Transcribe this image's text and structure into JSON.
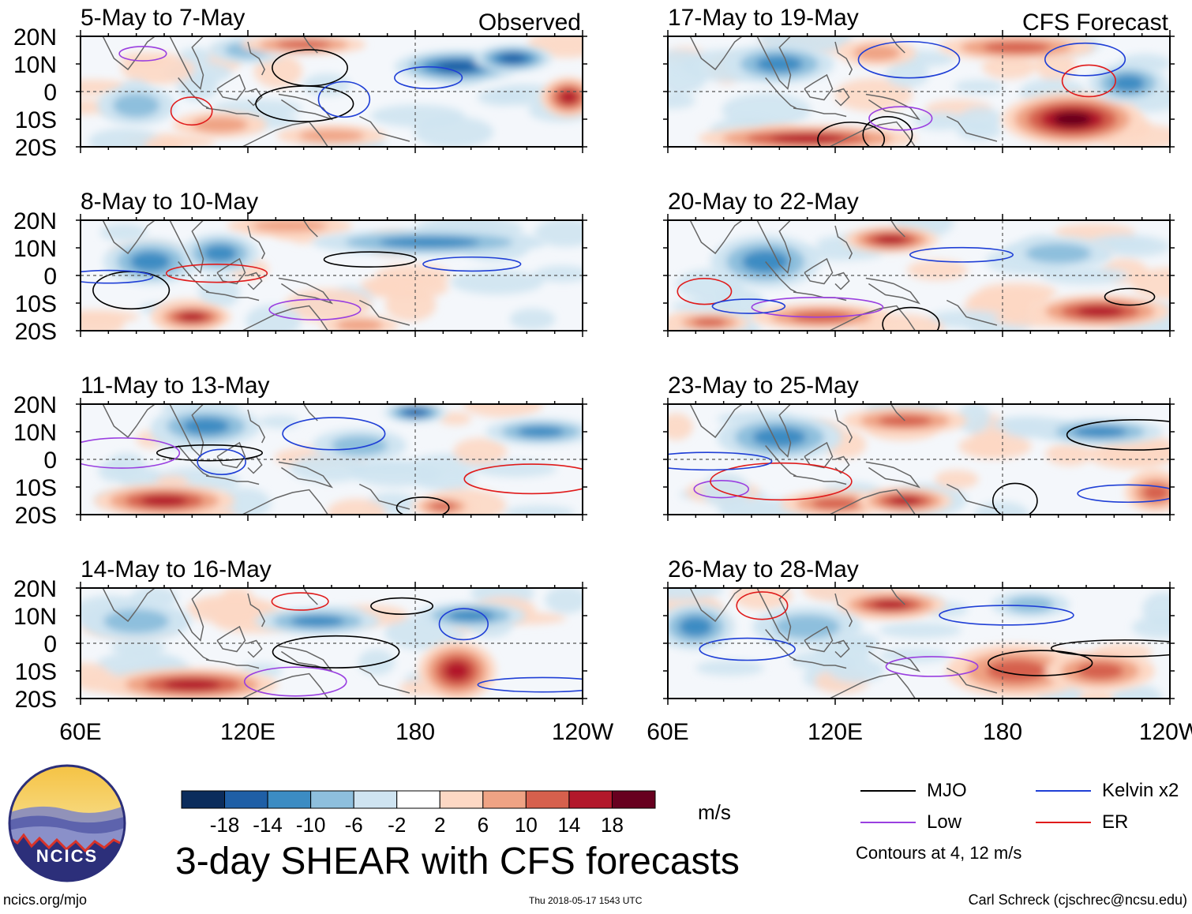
{
  "header": {
    "left_label": "Observed",
    "right_label": "CFS Forecast"
  },
  "chart_data": {
    "type": "heatmap",
    "title": "3-day SHEAR with CFS forecasts",
    "units": "m/s",
    "latitude_ticks": [
      "20N",
      "10N",
      "0",
      "10S",
      "20S"
    ],
    "longitude_ticks": [
      "60E",
      "120E",
      "180",
      "120W"
    ],
    "lat_range": [
      -20,
      20
    ],
    "lon_range": [
      60,
      240
    ],
    "colorbar": {
      "tick_labels": [
        "-18",
        "-14",
        "-10",
        "-6",
        "-2",
        "2",
        "6",
        "10",
        "14",
        "18"
      ],
      "colors": [
        "#0b2c5c",
        "#1f5fa6",
        "#3c8cc3",
        "#8ebfdd",
        "#cfe4f1",
        "#ffffff",
        "#fdd8c4",
        "#efa384",
        "#d6604d",
        "#b2182b",
        "#67001f"
      ]
    },
    "panels": [
      {
        "period": "5-May to 7-May",
        "column": "observed"
      },
      {
        "period": "8-May to 10-May",
        "column": "observed"
      },
      {
        "period": "11-May to 13-May",
        "column": "observed"
      },
      {
        "period": "14-May to 16-May",
        "column": "observed"
      },
      {
        "period": "17-May to 19-May",
        "column": "forecast"
      },
      {
        "period": "20-May to 22-May",
        "column": "forecast"
      },
      {
        "period": "23-May to 25-May",
        "column": "forecast"
      },
      {
        "period": "26-May to 28-May",
        "column": "forecast"
      }
    ]
  },
  "legend": {
    "items": [
      {
        "label": "MJO",
        "color": "#000000"
      },
      {
        "label": "Kelvin x2",
        "color": "#1f3fd6"
      },
      {
        "label": "Low",
        "color": "#9a3fe0"
      },
      {
        "label": "ER",
        "color": "#e01b1b"
      }
    ],
    "note": "Contours at 4, 12 m/s"
  },
  "footer": {
    "logo_text": "NCICS",
    "url": "ncics.org/mjo",
    "timestamp": "Thu 2018-05-17 1543 UTC",
    "credit": "Carl Schreck (cjschrec@ncsu.edu)"
  }
}
